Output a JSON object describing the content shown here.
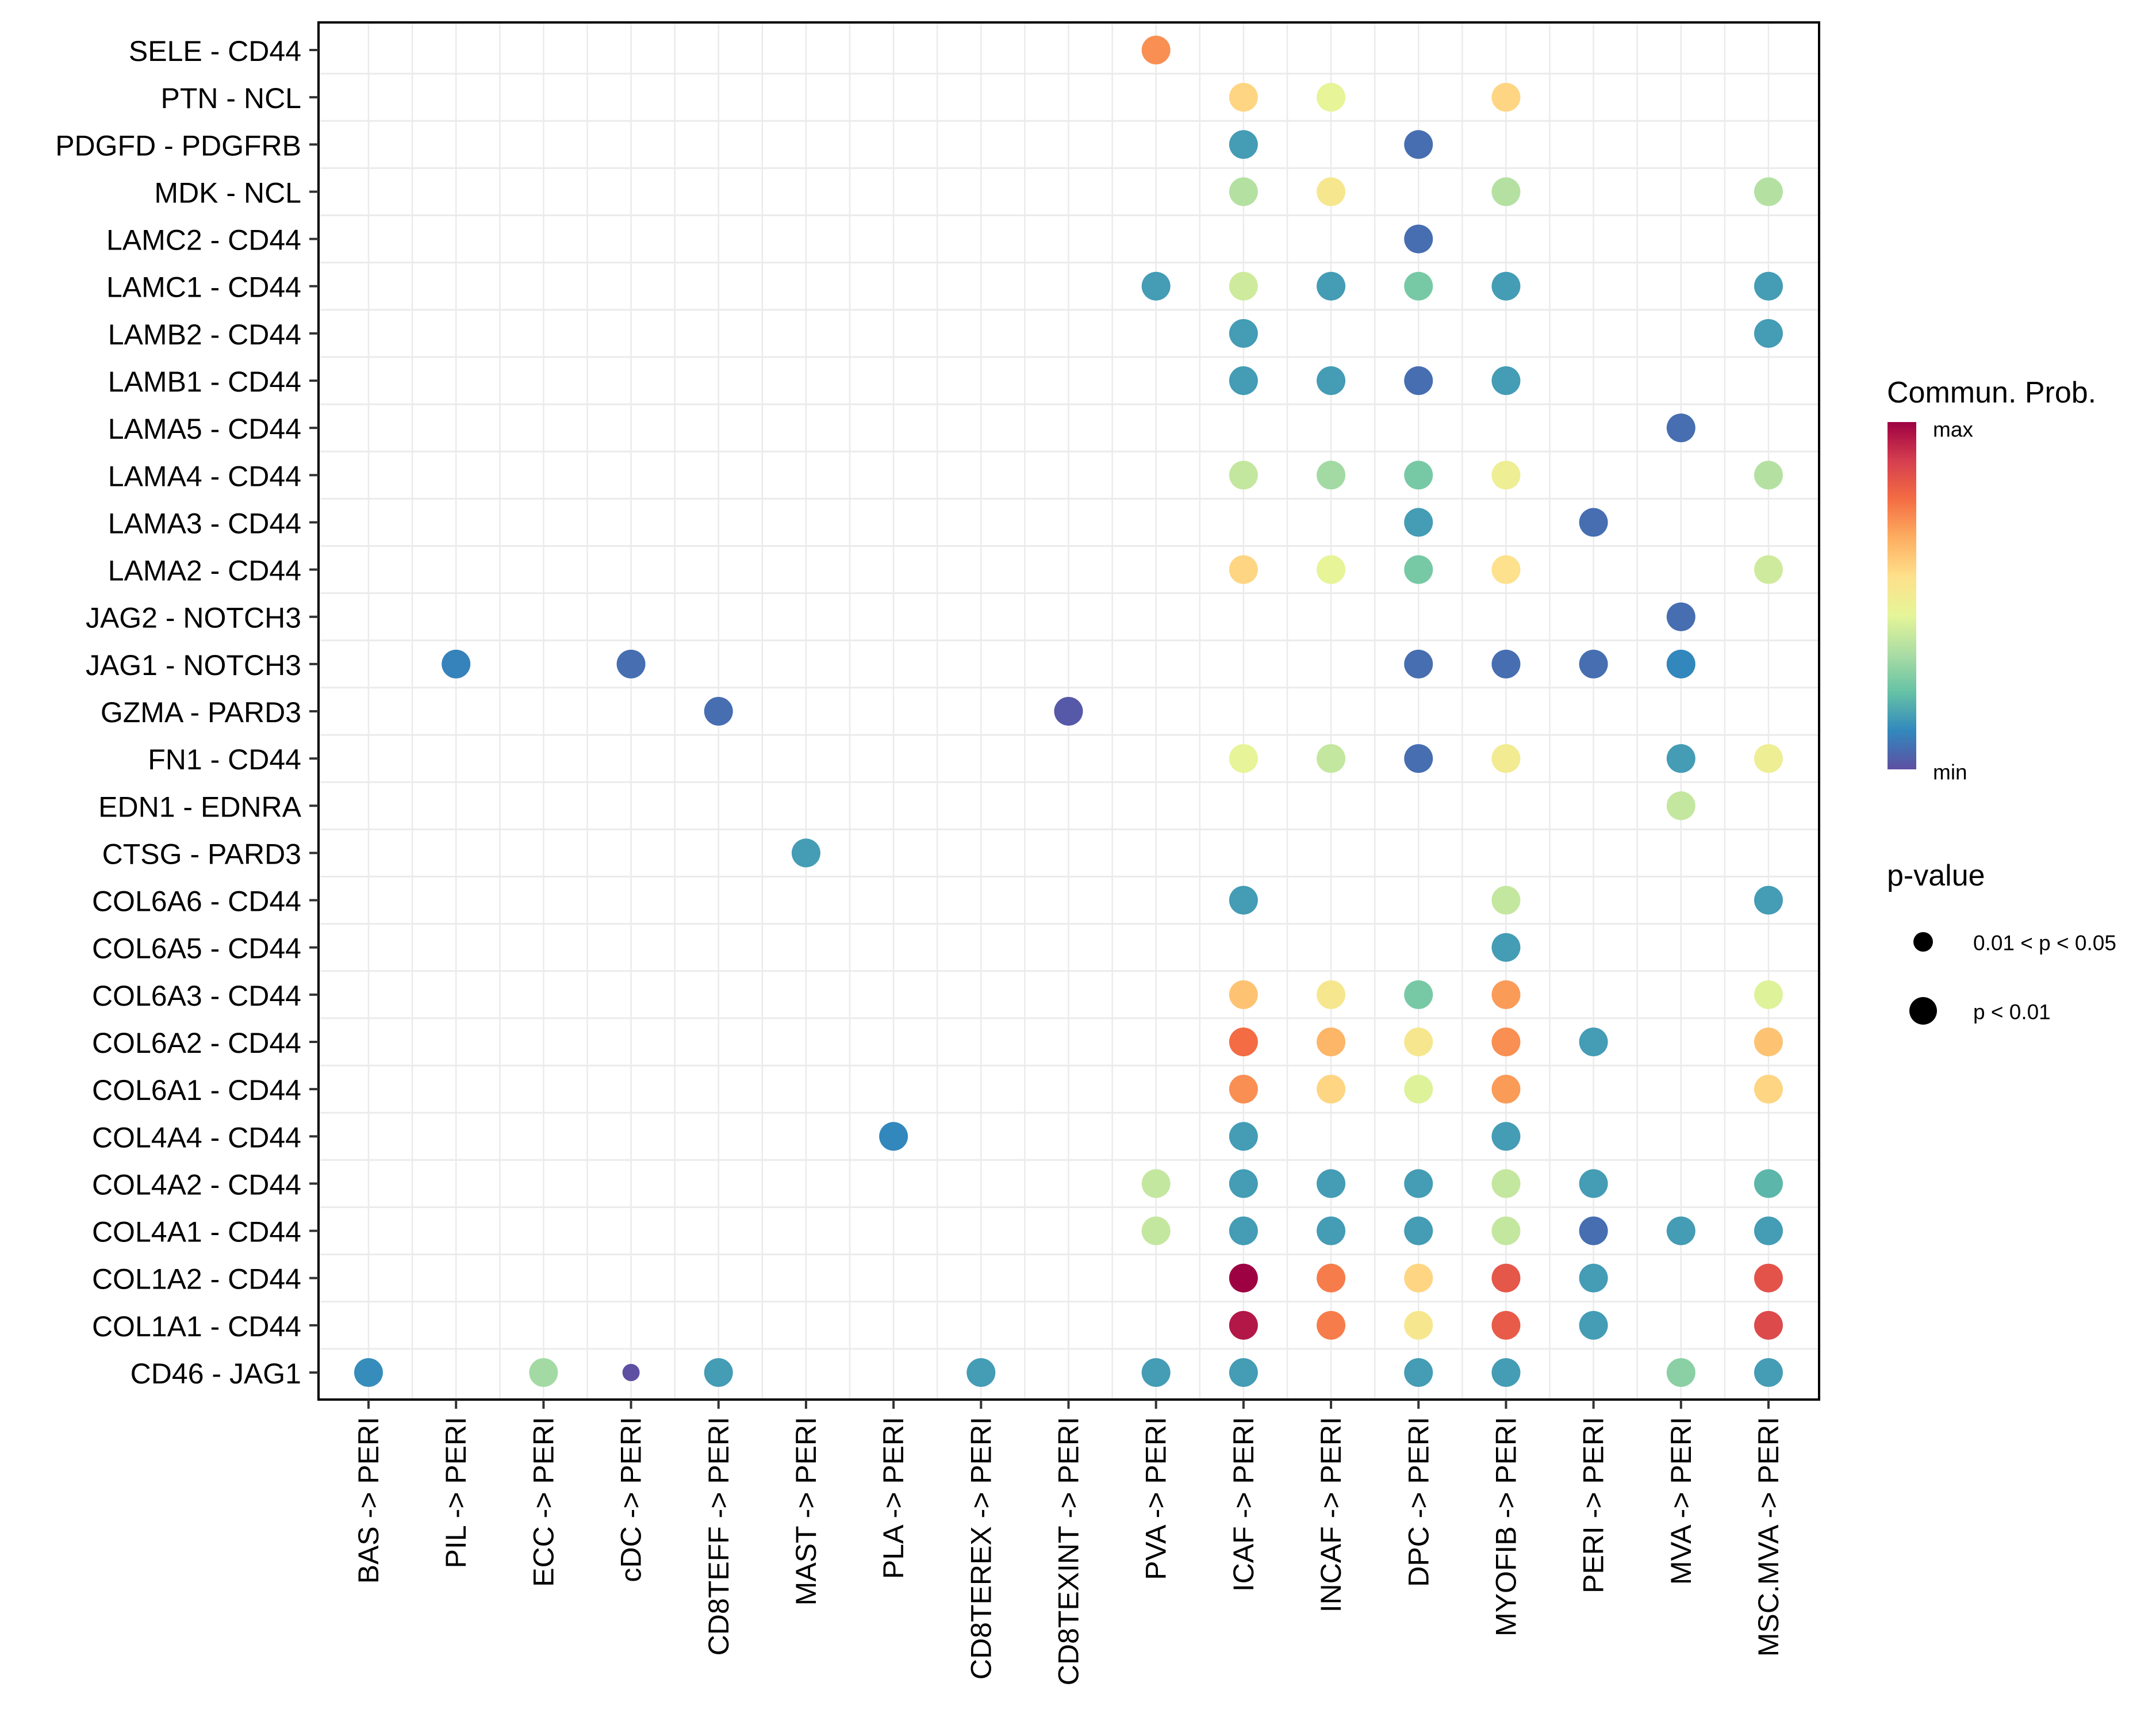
{
  "chart_data": {
    "type": "scatter",
    "subtype": "dot-plot",
    "title": "",
    "xlabel": "",
    "ylabel": "",
    "grid": true,
    "legend_placement": "right",
    "x_categories": [
      "BAS -> PERI",
      "PIL -> PERI",
      "ECC -> PERI",
      "cDC -> PERI",
      "CD8TEFF -> PERI",
      "MAST -> PERI",
      "PLA -> PERI",
      "CD8TEREX -> PERI",
      "CD8TEXINT -> PERI",
      "PVA -> PERI",
      "ICAF -> PERI",
      "INCAF -> PERI",
      "DPC -> PERI",
      "MYOFIB -> PERI",
      "PERI -> PERI",
      "MVA -> PERI",
      "MSC.MVA -> PERI"
    ],
    "y_categories": [
      "SELE - CD44",
      "PTN - NCL",
      "PDGFD - PDGFRB",
      "MDK - NCL",
      "LAMC2 - CD44",
      "LAMC1 - CD44",
      "LAMB2 - CD44",
      "LAMB1 - CD44",
      "LAMA5 - CD44",
      "LAMA4 - CD44",
      "LAMA3 - CD44",
      "LAMA2 - CD44",
      "JAG2 - NOTCH3",
      "JAG1 - NOTCH3",
      "GZMA - PARD3",
      "FN1 - CD44",
      "EDN1 - EDNRA",
      "CTSG - PARD3",
      "COL6A6 - CD44",
      "COL6A5 - CD44",
      "COL6A3 - CD44",
      "COL6A2 - CD44",
      "COL6A1 - CD44",
      "COL4A4 - CD44",
      "COL4A2 - CD44",
      "COL4A1 - CD44",
      "COL1A2 - CD44",
      "COL1A1 - CD44",
      "CD46 - JAG1"
    ],
    "value_scale_note": "prob is relative communication probability, 0 = min, 1 = max (estimated from color)",
    "points": [
      {
        "y": "SELE - CD44",
        "x": "PVA -> PERI",
        "prob": 0.72,
        "p": "p < 0.01"
      },
      {
        "y": "PTN - NCL",
        "x": "ICAF -> PERI",
        "prob": 0.58,
        "p": "p < 0.01"
      },
      {
        "y": "PTN - NCL",
        "x": "INCAF -> PERI",
        "prob": 0.45,
        "p": "p < 0.01"
      },
      {
        "y": "PTN - NCL",
        "x": "MYOFIB -> PERI",
        "prob": 0.58,
        "p": "p < 0.01"
      },
      {
        "y": "PDGFD - PDGFRB",
        "x": "ICAF -> PERI",
        "prob": 0.15,
        "p": "p < 0.01"
      },
      {
        "y": "PDGFD - PDGFRB",
        "x": "DPC -> PERI",
        "prob": 0.06,
        "p": "p < 0.01"
      },
      {
        "y": "MDK - NCL",
        "x": "ICAF -> PERI",
        "prob": 0.35,
        "p": "p < 0.01"
      },
      {
        "y": "MDK - NCL",
        "x": "INCAF -> PERI",
        "prob": 0.52,
        "p": "p < 0.01"
      },
      {
        "y": "MDK - NCL",
        "x": "MYOFIB -> PERI",
        "prob": 0.35,
        "p": "p < 0.01"
      },
      {
        "y": "MDK - NCL",
        "x": "MSC.MVA -> PERI",
        "prob": 0.35,
        "p": "p < 0.01"
      },
      {
        "y": "LAMC2 - CD44",
        "x": "DPC -> PERI",
        "prob": 0.06,
        "p": "p < 0.01"
      },
      {
        "y": "LAMC1 - CD44",
        "x": "PVA -> PERI",
        "prob": 0.15,
        "p": "p < 0.01"
      },
      {
        "y": "LAMC1 - CD44",
        "x": "ICAF -> PERI",
        "prob": 0.4,
        "p": "p < 0.01"
      },
      {
        "y": "LAMC1 - CD44",
        "x": "INCAF -> PERI",
        "prob": 0.15,
        "p": "p < 0.01"
      },
      {
        "y": "LAMC1 - CD44",
        "x": "DPC -> PERI",
        "prob": 0.25,
        "p": "p < 0.01"
      },
      {
        "y": "LAMC1 - CD44",
        "x": "MYOFIB -> PERI",
        "prob": 0.15,
        "p": "p < 0.01"
      },
      {
        "y": "LAMC1 - CD44",
        "x": "MSC.MVA -> PERI",
        "prob": 0.15,
        "p": "p < 0.01"
      },
      {
        "y": "LAMB2 - CD44",
        "x": "ICAF -> PERI",
        "prob": 0.15,
        "p": "p < 0.01"
      },
      {
        "y": "LAMB2 - CD44",
        "x": "MSC.MVA -> PERI",
        "prob": 0.15,
        "p": "p < 0.01"
      },
      {
        "y": "LAMB1 - CD44",
        "x": "ICAF -> PERI",
        "prob": 0.15,
        "p": "p < 0.01"
      },
      {
        "y": "LAMB1 - CD44",
        "x": "INCAF -> PERI",
        "prob": 0.15,
        "p": "p < 0.01"
      },
      {
        "y": "LAMB1 - CD44",
        "x": "DPC -> PERI",
        "prob": 0.06,
        "p": "p < 0.01"
      },
      {
        "y": "LAMB1 - CD44",
        "x": "MYOFIB -> PERI",
        "prob": 0.15,
        "p": "p < 0.01"
      },
      {
        "y": "LAMA5 - CD44",
        "x": "MVA -> PERI",
        "prob": 0.06,
        "p": "p < 0.01"
      },
      {
        "y": "LAMA4 - CD44",
        "x": "ICAF -> PERI",
        "prob": 0.38,
        "p": "p < 0.01"
      },
      {
        "y": "LAMA4 - CD44",
        "x": "INCAF -> PERI",
        "prob": 0.32,
        "p": "p < 0.01"
      },
      {
        "y": "LAMA4 - CD44",
        "x": "DPC -> PERI",
        "prob": 0.25,
        "p": "p < 0.01"
      },
      {
        "y": "LAMA4 - CD44",
        "x": "MYOFIB -> PERI",
        "prob": 0.48,
        "p": "p < 0.01"
      },
      {
        "y": "LAMA4 - CD44",
        "x": "MSC.MVA -> PERI",
        "prob": 0.35,
        "p": "p < 0.01"
      },
      {
        "y": "LAMA3 - CD44",
        "x": "DPC -> PERI",
        "prob": 0.15,
        "p": "p < 0.01"
      },
      {
        "y": "LAMA3 - CD44",
        "x": "PERI -> PERI",
        "prob": 0.06,
        "p": "p < 0.01"
      },
      {
        "y": "LAMA2 - CD44",
        "x": "ICAF -> PERI",
        "prob": 0.58,
        "p": "p < 0.01"
      },
      {
        "y": "LAMA2 - CD44",
        "x": "INCAF -> PERI",
        "prob": 0.45,
        "p": "p < 0.01"
      },
      {
        "y": "LAMA2 - CD44",
        "x": "DPC -> PERI",
        "prob": 0.25,
        "p": "p < 0.01"
      },
      {
        "y": "LAMA2 - CD44",
        "x": "MYOFIB -> PERI",
        "prob": 0.55,
        "p": "p < 0.01"
      },
      {
        "y": "LAMA2 - CD44",
        "x": "MSC.MVA -> PERI",
        "prob": 0.4,
        "p": "p < 0.01"
      },
      {
        "y": "JAG2 - NOTCH3",
        "x": "MVA -> PERI",
        "prob": 0.06,
        "p": "p < 0.01"
      },
      {
        "y": "JAG1 - NOTCH3",
        "x": "PIL -> PERI",
        "prob": 0.1,
        "p": "p < 0.01"
      },
      {
        "y": "JAG1 - NOTCH3",
        "x": "cDC -> PERI",
        "prob": 0.06,
        "p": "p < 0.01"
      },
      {
        "y": "JAG1 - NOTCH3",
        "x": "DPC -> PERI",
        "prob": 0.06,
        "p": "p < 0.01"
      },
      {
        "y": "JAG1 - NOTCH3",
        "x": "MYOFIB -> PERI",
        "prob": 0.06,
        "p": "p < 0.01"
      },
      {
        "y": "JAG1 - NOTCH3",
        "x": "PERI -> PERI",
        "prob": 0.06,
        "p": "p < 0.01"
      },
      {
        "y": "JAG1 - NOTCH3",
        "x": "MVA -> PERI",
        "prob": 0.11,
        "p": "p < 0.01"
      },
      {
        "y": "GZMA - PARD3",
        "x": "CD8TEFF -> PERI",
        "prob": 0.06,
        "p": "p < 0.01"
      },
      {
        "y": "GZMA - PARD3",
        "x": "CD8TEXINT -> PERI",
        "prob": 0.02,
        "p": "p < 0.01"
      },
      {
        "y": "FN1 - CD44",
        "x": "ICAF -> PERI",
        "prob": 0.45,
        "p": "p < 0.01"
      },
      {
        "y": "FN1 - CD44",
        "x": "INCAF -> PERI",
        "prob": 0.38,
        "p": "p < 0.01"
      },
      {
        "y": "FN1 - CD44",
        "x": "DPC -> PERI",
        "prob": 0.06,
        "p": "p < 0.01"
      },
      {
        "y": "FN1 - CD44",
        "x": "MYOFIB -> PERI",
        "prob": 0.5,
        "p": "p < 0.01"
      },
      {
        "y": "FN1 - CD44",
        "x": "MVA -> PERI",
        "prob": 0.15,
        "p": "p < 0.01"
      },
      {
        "y": "FN1 - CD44",
        "x": "MSC.MVA -> PERI",
        "prob": 0.48,
        "p": "p < 0.01"
      },
      {
        "y": "EDN1 - EDNRA",
        "x": "MVA -> PERI",
        "prob": 0.38,
        "p": "p < 0.01"
      },
      {
        "y": "CTSG - PARD3",
        "x": "MAST -> PERI",
        "prob": 0.15,
        "p": "p < 0.01"
      },
      {
        "y": "COL6A6 - CD44",
        "x": "ICAF -> PERI",
        "prob": 0.15,
        "p": "p < 0.01"
      },
      {
        "y": "COL6A6 - CD44",
        "x": "MYOFIB -> PERI",
        "prob": 0.38,
        "p": "p < 0.01"
      },
      {
        "y": "COL6A6 - CD44",
        "x": "MSC.MVA -> PERI",
        "prob": 0.15,
        "p": "p < 0.01"
      },
      {
        "y": "COL6A5 - CD44",
        "x": "MYOFIB -> PERI",
        "prob": 0.15,
        "p": "p < 0.01"
      },
      {
        "y": "COL6A3 - CD44",
        "x": "ICAF -> PERI",
        "prob": 0.62,
        "p": "p < 0.01"
      },
      {
        "y": "COL6A3 - CD44",
        "x": "INCAF -> PERI",
        "prob": 0.52,
        "p": "p < 0.01"
      },
      {
        "y": "COL6A3 - CD44",
        "x": "DPC -> PERI",
        "prob": 0.25,
        "p": "p < 0.01"
      },
      {
        "y": "COL6A3 - CD44",
        "x": "MYOFIB -> PERI",
        "prob": 0.7,
        "p": "p < 0.01"
      },
      {
        "y": "COL6A3 - CD44",
        "x": "MSC.MVA -> PERI",
        "prob": 0.43,
        "p": "p < 0.01"
      },
      {
        "y": "COL6A2 - CD44",
        "x": "ICAF -> PERI",
        "prob": 0.78,
        "p": "p < 0.01"
      },
      {
        "y": "COL6A2 - CD44",
        "x": "INCAF -> PERI",
        "prob": 0.65,
        "p": "p < 0.01"
      },
      {
        "y": "COL6A2 - CD44",
        "x": "DPC -> PERI",
        "prob": 0.52,
        "p": "p < 0.01"
      },
      {
        "y": "COL6A2 - CD44",
        "x": "MYOFIB -> PERI",
        "prob": 0.72,
        "p": "p < 0.01"
      },
      {
        "y": "COL6A2 - CD44",
        "x": "PERI -> PERI",
        "prob": 0.15,
        "p": "p < 0.01"
      },
      {
        "y": "COL6A2 - CD44",
        "x": "MSC.MVA -> PERI",
        "prob": 0.62,
        "p": "p < 0.01"
      },
      {
        "y": "COL6A1 - CD44",
        "x": "ICAF -> PERI",
        "prob": 0.72,
        "p": "p < 0.01"
      },
      {
        "y": "COL6A1 - CD44",
        "x": "INCAF -> PERI",
        "prob": 0.58,
        "p": "p < 0.01"
      },
      {
        "y": "COL6A1 - CD44",
        "x": "DPC -> PERI",
        "prob": 0.43,
        "p": "p < 0.01"
      },
      {
        "y": "COL6A1 - CD44",
        "x": "MYOFIB -> PERI",
        "prob": 0.7,
        "p": "p < 0.01"
      },
      {
        "y": "COL6A1 - CD44",
        "x": "MSC.MVA -> PERI",
        "prob": 0.58,
        "p": "p < 0.01"
      },
      {
        "y": "COL4A4 - CD44",
        "x": "PLA -> PERI",
        "prob": 0.11,
        "p": "p < 0.01"
      },
      {
        "y": "COL4A4 - CD44",
        "x": "ICAF -> PERI",
        "prob": 0.15,
        "p": "p < 0.01"
      },
      {
        "y": "COL4A4 - CD44",
        "x": "MYOFIB -> PERI",
        "prob": 0.15,
        "p": "p < 0.01"
      },
      {
        "y": "COL4A2 - CD44",
        "x": "PVA -> PERI",
        "prob": 0.38,
        "p": "p < 0.01"
      },
      {
        "y": "COL4A2 - CD44",
        "x": "ICAF -> PERI",
        "prob": 0.15,
        "p": "p < 0.01"
      },
      {
        "y": "COL4A2 - CD44",
        "x": "INCAF -> PERI",
        "prob": 0.15,
        "p": "p < 0.01"
      },
      {
        "y": "COL4A2 - CD44",
        "x": "DPC -> PERI",
        "prob": 0.15,
        "p": "p < 0.01"
      },
      {
        "y": "COL4A2 - CD44",
        "x": "MYOFIB -> PERI",
        "prob": 0.38,
        "p": "p < 0.01"
      },
      {
        "y": "COL4A2 - CD44",
        "x": "PERI -> PERI",
        "prob": 0.15,
        "p": "p < 0.01"
      },
      {
        "y": "COL4A2 - CD44",
        "x": "MSC.MVA -> PERI",
        "prob": 0.2,
        "p": "p < 0.01"
      },
      {
        "y": "COL4A1 - CD44",
        "x": "PVA -> PERI",
        "prob": 0.38,
        "p": "p < 0.01"
      },
      {
        "y": "COL4A1 - CD44",
        "x": "ICAF -> PERI",
        "prob": 0.15,
        "p": "p < 0.01"
      },
      {
        "y": "COL4A1 - CD44",
        "x": "INCAF -> PERI",
        "prob": 0.15,
        "p": "p < 0.01"
      },
      {
        "y": "COL4A1 - CD44",
        "x": "DPC -> PERI",
        "prob": 0.15,
        "p": "p < 0.01"
      },
      {
        "y": "COL4A1 - CD44",
        "x": "MYOFIB -> PERI",
        "prob": 0.38,
        "p": "p < 0.01"
      },
      {
        "y": "COL4A1 - CD44",
        "x": "PERI -> PERI",
        "prob": 0.06,
        "p": "p < 0.01"
      },
      {
        "y": "COL4A1 - CD44",
        "x": "MVA -> PERI",
        "prob": 0.15,
        "p": "p < 0.01"
      },
      {
        "y": "COL4A1 - CD44",
        "x": "MSC.MVA -> PERI",
        "prob": 0.15,
        "p": "p < 0.01"
      },
      {
        "y": "COL1A2 - CD44",
        "x": "ICAF -> PERI",
        "prob": 1.0,
        "p": "p < 0.01"
      },
      {
        "y": "COL1A2 - CD44",
        "x": "INCAF -> PERI",
        "prob": 0.75,
        "p": "p < 0.01"
      },
      {
        "y": "COL1A2 - CD44",
        "x": "DPC -> PERI",
        "prob": 0.58,
        "p": "p < 0.01"
      },
      {
        "y": "COL1A2 - CD44",
        "x": "MYOFIB -> PERI",
        "prob": 0.83,
        "p": "p < 0.01"
      },
      {
        "y": "COL1A2 - CD44",
        "x": "PERI -> PERI",
        "prob": 0.15,
        "p": "p < 0.01"
      },
      {
        "y": "COL1A2 - CD44",
        "x": "MSC.MVA -> PERI",
        "prob": 0.84,
        "p": "p < 0.01"
      },
      {
        "y": "COL1A1 - CD44",
        "x": "ICAF -> PERI",
        "prob": 0.96,
        "p": "p < 0.01"
      },
      {
        "y": "COL1A1 - CD44",
        "x": "INCAF -> PERI",
        "prob": 0.75,
        "p": "p < 0.01"
      },
      {
        "y": "COL1A1 - CD44",
        "x": "DPC -> PERI",
        "prob": 0.52,
        "p": "p < 0.01"
      },
      {
        "y": "COL1A1 - CD44",
        "x": "MYOFIB -> PERI",
        "prob": 0.82,
        "p": "p < 0.01"
      },
      {
        "y": "COL1A1 - CD44",
        "x": "PERI -> PERI",
        "prob": 0.15,
        "p": "p < 0.01"
      },
      {
        "y": "COL1A1 - CD44",
        "x": "MSC.MVA -> PERI",
        "prob": 0.86,
        "p": "p < 0.01"
      },
      {
        "y": "CD46 - JAG1",
        "x": "BAS -> PERI",
        "prob": 0.12,
        "p": "p < 0.01"
      },
      {
        "y": "CD46 - JAG1",
        "x": "ECC -> PERI",
        "prob": 0.32,
        "p": "p < 0.01"
      },
      {
        "y": "CD46 - JAG1",
        "x": "cDC -> PERI",
        "prob": 0.0,
        "p": "0.01 < p < 0.05"
      },
      {
        "y": "CD46 - JAG1",
        "x": "CD8TEFF -> PERI",
        "prob": 0.15,
        "p": "p < 0.01"
      },
      {
        "y": "CD46 - JAG1",
        "x": "CD8TEREX -> PERI",
        "prob": 0.15,
        "p": "p < 0.01"
      },
      {
        "y": "CD46 - JAG1",
        "x": "PVA -> PERI",
        "prob": 0.15,
        "p": "p < 0.01"
      },
      {
        "y": "CD46 - JAG1",
        "x": "ICAF -> PERI",
        "prob": 0.15,
        "p": "p < 0.01"
      },
      {
        "y": "CD46 - JAG1",
        "x": "DPC -> PERI",
        "prob": 0.15,
        "p": "p < 0.01"
      },
      {
        "y": "CD46 - JAG1",
        "x": "MYOFIB -> PERI",
        "prob": 0.15,
        "p": "p < 0.01"
      },
      {
        "y": "CD46 - JAG1",
        "x": "MVA -> PERI",
        "prob": 0.28,
        "p": "p < 0.01"
      },
      {
        "y": "CD46 - JAG1",
        "x": "MSC.MVA -> PERI",
        "prob": 0.15,
        "p": "p < 0.01"
      }
    ],
    "color_legend": {
      "title": "Commun. Prob.",
      "max_label": "max",
      "min_label": "min",
      "palette_max_to_min": [
        "#9e0142",
        "#d53e4f",
        "#f46d43",
        "#fdae61",
        "#fee08b",
        "#e6f598",
        "#abdda4",
        "#66c2a5",
        "#3288bd",
        "#5e4fa2"
      ]
    },
    "size_legend": {
      "title": "p-value",
      "items": [
        {
          "label": "0.01 < p < 0.05",
          "size": "small"
        },
        {
          "label": "p < 0.01",
          "size": "large"
        }
      ]
    }
  }
}
